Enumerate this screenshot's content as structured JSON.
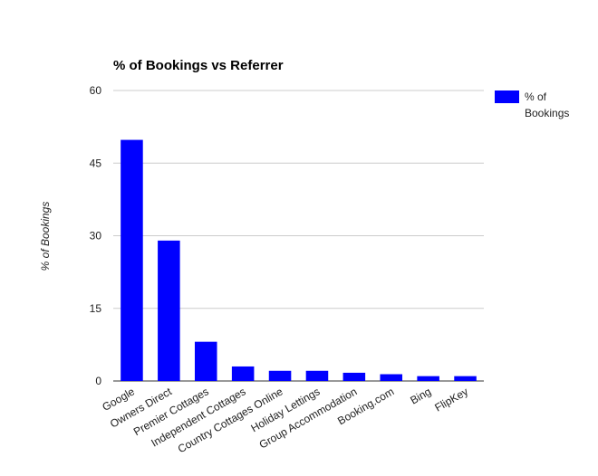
{
  "chart_data": {
    "type": "bar",
    "title": "% of Bookings vs Referrer",
    "xlabel": "",
    "ylabel": "% of Bookings",
    "categories": [
      "Google",
      "Owners Direct",
      "Premier Cottages",
      "Independent Cottages",
      "Country Cottages Online",
      "Holiday Lettings",
      "Group Accommodation",
      "Booking.com",
      "Bing",
      "FlipKey"
    ],
    "series": [
      {
        "name": "% of Bookings",
        "values": [
          49.8,
          29.0,
          8.1,
          3.0,
          2.1,
          2.1,
          1.7,
          1.4,
          1.0,
          1.0
        ],
        "color": "#0000ff"
      }
    ],
    "legend": {
      "position": "right",
      "label": "% of Bookings"
    },
    "ylim": [
      0,
      60
    ],
    "yticks": [
      "0",
      "15",
      "30",
      "45",
      "60"
    ],
    "grid": true,
    "colors": {
      "bar": "#0000ff",
      "grid": "#cccccc",
      "axis": "#333333",
      "text": "#222222"
    }
  }
}
